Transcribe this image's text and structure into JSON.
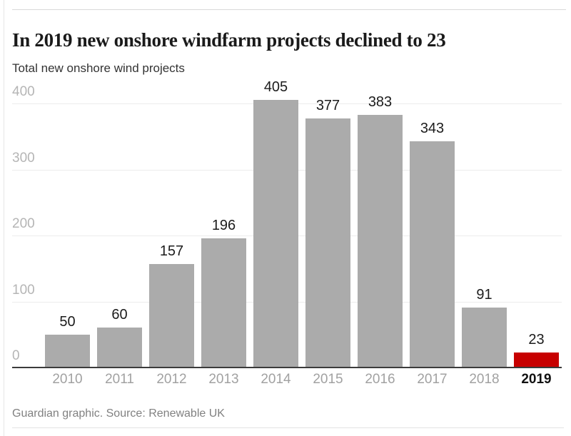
{
  "header": {
    "title": "In 2019 new onshore windfarm projects declined to 23",
    "subtitle": "Total new onshore wind projects"
  },
  "footer": {
    "source": "Guardian graphic. Source: Renewable UK"
  },
  "chart_data": {
    "type": "bar",
    "title": "In 2019 new onshore windfarm projects declined to 23",
    "subtitle": "Total new onshore wind projects",
    "categories": [
      "2010",
      "2011",
      "2012",
      "2013",
      "2014",
      "2015",
      "2016",
      "2017",
      "2018",
      "2019"
    ],
    "values": [
      50,
      60,
      157,
      196,
      405,
      377,
      383,
      343,
      91,
      23
    ],
    "value_labels_shown": true,
    "ylim": [
      0,
      400
    ],
    "yticks": [
      0,
      100,
      200,
      300,
      400
    ],
    "grid": "horizontal",
    "legend": "none",
    "highlight_category": "2019",
    "source": "Guardian graphic. Source: Renewable UK"
  },
  "colors": {
    "bar": "#ababab",
    "highlight_bar": "#c70000",
    "title_text": "#1a1a1a",
    "subtitle_text": "#333333",
    "axis_line": "#3c3c3c",
    "gridline": "#ececec",
    "y_tick_text": "#b5b5b5",
    "x_tick_text": "#a1a1a1",
    "x_tick_highlight_text": "#121212",
    "value_label_text": "#1c1c1c",
    "source_text": "#818181"
  }
}
